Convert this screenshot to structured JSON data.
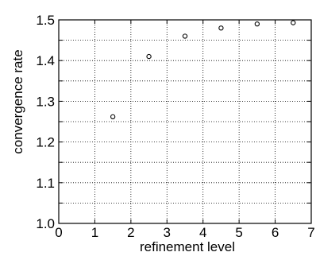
{
  "chart_data": {
    "type": "scatter",
    "title": "",
    "xlabel": "refinement level",
    "ylabel": "convergence rate",
    "xlim": [
      0,
      7
    ],
    "ylim": [
      1.0,
      1.5
    ],
    "xticks": [
      0,
      1,
      2,
      3,
      4,
      5,
      6,
      7
    ],
    "yticks": [
      1.0,
      1.1,
      1.2,
      1.3,
      1.4,
      1.5
    ],
    "xtick_labels": [
      "0",
      "1",
      "2",
      "3",
      "4",
      "5",
      "6",
      "7"
    ],
    "ytick_labels": [
      "1.0",
      "1.1",
      "1.2",
      "1.3",
      "1.4",
      "1.5"
    ],
    "y_minor_ticks": [
      1.05,
      1.15,
      1.25,
      1.35,
      1.45
    ],
    "grid": true,
    "marker": "open-circle",
    "x": [
      1.5,
      2.5,
      3.5,
      4.5,
      5.5,
      6.5
    ],
    "y": [
      1.262,
      1.41,
      1.46,
      1.48,
      1.49,
      1.493
    ]
  }
}
